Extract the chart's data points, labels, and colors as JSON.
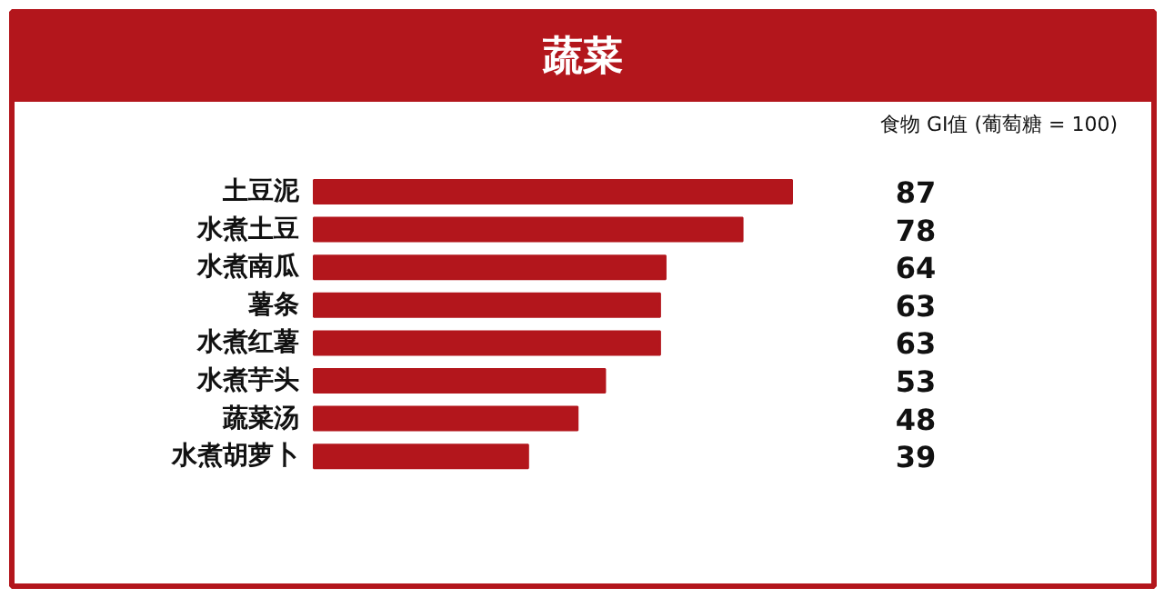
{
  "chart_data": {
    "type": "bar",
    "orientation": "horizontal",
    "title": "蔬菜",
    "subtitle": "食物 GI值 (葡萄糖 = 100)",
    "categories": [
      "土豆泥",
      "水煮土豆",
      "水煮南瓜",
      "薯条",
      "水煮红薯",
      "水煮芋头",
      "蔬菜汤",
      "水煮胡萝卜"
    ],
    "values": [
      87,
      78,
      64,
      63,
      63,
      53,
      48,
      39
    ],
    "color": "#b3161c",
    "data_labels": true
  }
}
